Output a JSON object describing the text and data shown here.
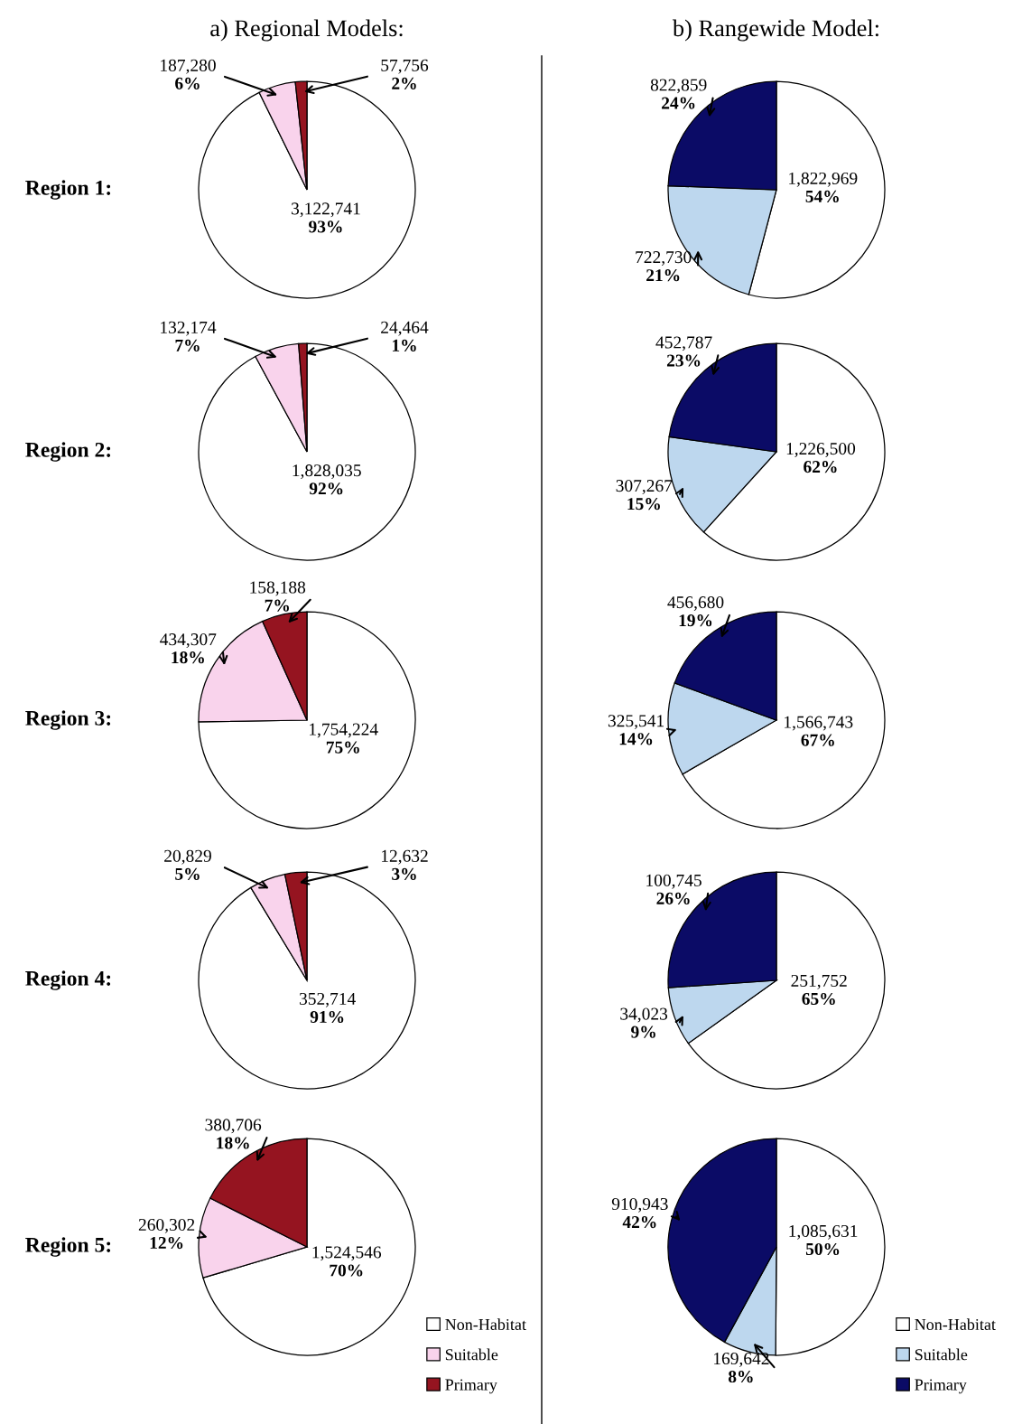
{
  "chart_data": [
    {
      "type": "pie",
      "title": "a) Regional Models:",
      "ylabel": "Region 1:",
      "categories": [
        null,
        null,
        null
      ],
      "values": [
        3122741,
        187280,
        57756
      ],
      "colors": [
        "#ffffff",
        "#f9d3ec",
        "#951420"
      ],
      "value_labels": [
        "3,122,741\n93%",
        "187,280\n6%",
        "57,756\n2%"
      ]
    },
    {
      "type": "pie",
      "title": "b) Rangewide Model:",
      "categories": [
        null,
        null,
        null
      ],
      "values": [
        1822969,
        722730,
        822859
      ],
      "colors": [
        "#ffffff",
        "#bdd7ee",
        "#0b0b66"
      ],
      "value_labels": [
        "1,822,969\n54%",
        "722,730\n21%",
        "822,859\n24%"
      ]
    },
    {
      "type": "pie",
      "ylabel": "Region 2:",
      "categories": [
        null,
        null,
        null
      ],
      "values": [
        1828035,
        132174,
        24464
      ],
      "colors": [
        "#ffffff",
        "#f9d3ec",
        "#951420"
      ],
      "value_labels": [
        "1,828,035\n92%",
        "132,174\n7%",
        "24,464\n1%"
      ]
    },
    {
      "type": "pie",
      "categories": [
        null,
        null,
        null
      ],
      "values": [
        1226500,
        307267,
        452787
      ],
      "colors": [
        "#ffffff",
        "#bdd7ee",
        "#0b0b66"
      ],
      "value_labels": [
        "1,226,500\n62%",
        "307,267\n15%",
        "452,787\n23%"
      ]
    },
    {
      "type": "pie",
      "ylabel": "Region 3:",
      "categories": [
        null,
        null,
        null
      ],
      "values": [
        1754224,
        434307,
        158188
      ],
      "colors": [
        "#ffffff",
        "#f9d3ec",
        "#951420"
      ],
      "value_labels": [
        "1,754,224\n75%",
        "434,307\n18%",
        "158,188\n7%"
      ]
    },
    {
      "type": "pie",
      "categories": [
        null,
        null,
        null
      ],
      "values": [
        1566743,
        325541,
        456680
      ],
      "colors": [
        "#ffffff",
        "#bdd7ee",
        "#0b0b66"
      ],
      "value_labels": [
        "1,566,743\n67%",
        "325,541\n14%",
        "456,680\n19%"
      ]
    },
    {
      "type": "pie",
      "ylabel": "Region 4:",
      "categories": [
        null,
        null,
        null
      ],
      "values": [
        352714,
        20829,
        12632
      ],
      "colors": [
        "#ffffff",
        "#f9d3ec",
        "#951420"
      ],
      "value_labels": [
        "352,714\n91%",
        "20,829\n5%",
        "12,632\n3%"
      ]
    },
    {
      "type": "pie",
      "categories": [
        null,
        null,
        null
      ],
      "values": [
        251752,
        34023,
        100745
      ],
      "colors": [
        "#ffffff",
        "#bdd7ee",
        "#0b0b66"
      ],
      "value_labels": [
        "251,752\n65%",
        "34,023\n9%",
        "100,745\n26%"
      ]
    },
    {
      "type": "pie",
      "ylabel": "Region 5:",
      "categories": [
        "Non-Habitat",
        "Suitable",
        "Primary"
      ],
      "values": [
        1524546,
        260302,
        380706
      ],
      "colors": [
        "#ffffff",
        "#f9d3ec",
        "#951420"
      ],
      "value_labels": [
        "1,524,546\n70%",
        "260,302\n12%",
        "380,706\n18%"
      ],
      "legend": "bottom right"
    },
    {
      "type": "pie",
      "categories": [
        "Non-Habitat",
        "Suitable",
        "Primary"
      ],
      "values": [
        1085631,
        169642,
        910943
      ],
      "colors": [
        "#ffffff",
        "#bdd7ee",
        "#0b0b66"
      ],
      "value_labels": [
        "1,085,631\n50%",
        "169,642\n8%",
        "910,943\n42%"
      ],
      "legend": "bottom right"
    }
  ]
}
